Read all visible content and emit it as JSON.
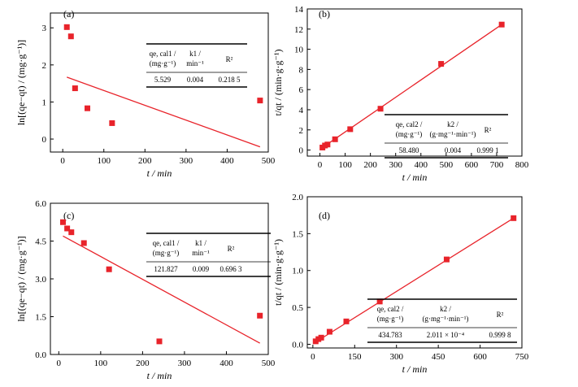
{
  "colors": {
    "marker": "#e8232a",
    "line": "#e8232a",
    "axis": "#000000"
  },
  "chart_data": [
    {
      "panel": "(a)",
      "type": "scatter",
      "xlabel": "t / min",
      "ylabel": "ln[(qe−qt) / (mg·g⁻¹)]",
      "xlim": [
        -30,
        500
      ],
      "ylim": [
        -0.35,
        3.4
      ],
      "xticks": [
        "0",
        "100",
        "200",
        "300",
        "400",
        "500"
      ],
      "yticks": [
        "0",
        "1",
        "2",
        "3"
      ],
      "points": [
        [
          10,
          3.02
        ],
        [
          20,
          2.77
        ],
        [
          30,
          1.37
        ],
        [
          60,
          0.83
        ],
        [
          120,
          0.43
        ],
        [
          480,
          1.04
        ]
      ],
      "fit": [
        [
          10,
          1.67
        ],
        [
          480,
          -0.21
        ]
      ],
      "table": {
        "headers": [
          "qe, cal1 / (mg·g⁻¹)",
          "k1 / min⁻¹",
          "R²"
        ],
        "values": [
          "5.529",
          "0.004",
          "0.218 5"
        ]
      }
    },
    {
      "panel": "(b)",
      "type": "scatter",
      "xlabel": "t / min",
      "ylabel": "t/qt / (min·g·g⁻¹)",
      "xlim": [
        -50,
        800
      ],
      "ylim": [
        -0.6,
        14
      ],
      "xticks": [
        "0",
        "100",
        "200",
        "300",
        "400",
        "500",
        "600",
        "700",
        "800"
      ],
      "yticks": [
        "0",
        "2",
        "4",
        "6",
        "8",
        "10",
        "12",
        "14"
      ],
      "points": [
        [
          10,
          0.25
        ],
        [
          20,
          0.45
        ],
        [
          30,
          0.55
        ],
        [
          60,
          1.07
        ],
        [
          120,
          2.07
        ],
        [
          240,
          4.1
        ],
        [
          480,
          8.55
        ],
        [
          720,
          12.45
        ]
      ],
      "fit": [
        [
          10,
          0.25
        ],
        [
          720,
          12.45
        ]
      ],
      "table": {
        "headers": [
          "qe, cal2 / (mg·g⁻¹)",
          "k2 / (g·mg⁻¹·min⁻¹)",
          "R²"
        ],
        "values": [
          "58.480",
          "0.004",
          "0.999 1"
        ]
      }
    },
    {
      "panel": "(c)",
      "type": "scatter",
      "xlabel": "t / min",
      "ylabel": "ln[(qe−qt) / (mg·g⁻¹)]",
      "xlim": [
        -20,
        500
      ],
      "ylim": [
        0,
        6
      ],
      "xticks": [
        "0",
        "100",
        "200",
        "300",
        "400",
        "500"
      ],
      "yticks": [
        "0.0",
        "1.5",
        "3.0",
        "4.5",
        "6.0"
      ],
      "points": [
        [
          10,
          5.25
        ],
        [
          20,
          5.0
        ],
        [
          30,
          4.85
        ],
        [
          60,
          4.42
        ],
        [
          120,
          3.38
        ],
        [
          240,
          0.52
        ],
        [
          480,
          1.54
        ]
      ],
      "fit": [
        [
          10,
          4.7
        ],
        [
          480,
          0.45
        ]
      ],
      "table": {
        "headers": [
          "qe, cal1 / (mg·g⁻¹)",
          "k1 / min⁻¹",
          "R²"
        ],
        "values": [
          "121.827",
          "0.009",
          "0.696 3"
        ]
      }
    },
    {
      "panel": "(d)",
      "type": "scatter",
      "xlabel": "t / min",
      "ylabel": "t/qt / (min·g·g⁻¹)",
      "xlim": [
        -20,
        750
      ],
      "ylim": [
        -0.05,
        2.0
      ],
      "xticks": [
        "0",
        "150",
        "300",
        "450",
        "600",
        "750"
      ],
      "yticks": [
        "0.0",
        "0.5",
        "1.0",
        "1.5",
        "2.0"
      ],
      "points": [
        [
          10,
          0.04
        ],
        [
          20,
          0.07
        ],
        [
          30,
          0.09
        ],
        [
          60,
          0.17
        ],
        [
          120,
          0.31
        ],
        [
          240,
          0.58
        ],
        [
          480,
          1.15
        ],
        [
          720,
          1.71
        ]
      ],
      "fit": [
        [
          10,
          0.03
        ],
        [
          720,
          1.71
        ]
      ],
      "table": {
        "headers": [
          "qe, cal2 / (mg·g⁻¹)",
          "k2 / (g·mg⁻¹·min⁻¹)",
          "R²"
        ],
        "values": [
          "434.783",
          "2.011 × 10⁻⁴",
          "0.999 8"
        ]
      }
    }
  ]
}
